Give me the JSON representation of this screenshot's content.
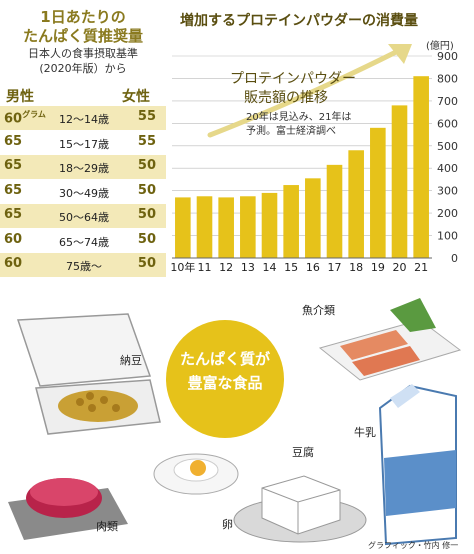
{
  "table": {
    "title_line1": "1日あたりの",
    "title_line2": "たんぱく質推奨量",
    "source_line1": "日本人の食事摂取基準",
    "source_line2": "(2020年版）から",
    "male_header": "男性",
    "female_header": "女性",
    "rows": [
      {
        "male": "60",
        "male_note": "グラム",
        "age": "12～14歳",
        "female": "55"
      },
      {
        "male": "65",
        "age": "15～17歳",
        "female": "55"
      },
      {
        "male": "65",
        "age": "18～29歳",
        "female": "50"
      },
      {
        "male": "65",
        "age": "30～49歳",
        "female": "50"
      },
      {
        "male": "65",
        "age": "50～64歳",
        "female": "50"
      },
      {
        "male": "60",
        "age": "65～74歳",
        "female": "50"
      },
      {
        "male": "60",
        "age": "75歳～",
        "female": "50"
      }
    ]
  },
  "chart_header": "増加するプロテインパウダーの消費量",
  "annotation": {
    "label_line1": "プロテインパウダー",
    "label_line2": "販売額の推移",
    "note_line1": "20年は見込み、21年は",
    "note_line2": "予測。富士経済調べ"
  },
  "chart_data": {
    "type": "bar",
    "categories": [
      "10年",
      "11",
      "12",
      "13",
      "14",
      "15",
      "16",
      "17",
      "18",
      "19",
      "20",
      "21"
    ],
    "values": [
      270,
      275,
      270,
      275,
      290,
      325,
      355,
      415,
      480,
      580,
      680,
      810
    ],
    "unit": "(億円)",
    "ylim": [
      0,
      900
    ],
    "yticks": [
      "0",
      "100",
      "200",
      "300",
      "400",
      "500",
      "600",
      "700",
      "800",
      "900"
    ],
    "grid": true,
    "bar_color": "#e6c21a"
  },
  "foods": {
    "badge_line1": "たんぱく質が",
    "badge_line2": "豊富な食品",
    "natto": "納豆",
    "fish": "魚介類",
    "milk": "牛乳",
    "tofu": "豆腐",
    "egg": "卵",
    "meat": "肉類"
  },
  "credit": "グラフィック・竹内 修一",
  "colors": {
    "accent": "#e6c21a",
    "row_shade": "#f3e9b8",
    "brown": "#6e6210"
  }
}
